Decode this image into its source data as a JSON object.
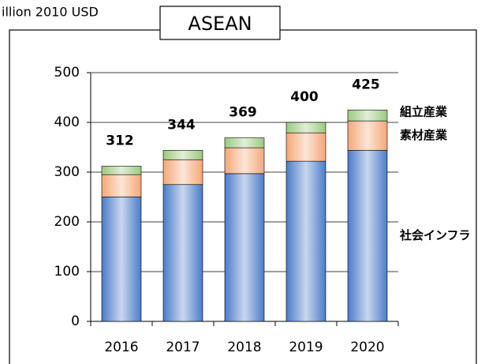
{
  "chart_data": {
    "type": "stacked_bar",
    "title": "ASEAN",
    "y_label": "illion 2010 USD",
    "categories": [
      "2016",
      "2017",
      "2018",
      "2019",
      "2020"
    ],
    "series": [
      {
        "name": "社会インフラ",
        "color": "#4a7bc8",
        "values": [
          250,
          275,
          297,
          322,
          344
        ]
      },
      {
        "name": "素材産業",
        "color": "#f4a878",
        "values": [
          45,
          50,
          52,
          57,
          59
        ]
      },
      {
        "name": "組立産業",
        "color": "#9bc97e",
        "values": [
          17,
          19,
          20,
          21,
          22
        ]
      }
    ],
    "total_labels": [
      312,
      344,
      369,
      400,
      425
    ],
    "ylim": [
      0,
      500
    ],
    "yticks": [
      0,
      100,
      200,
      300,
      400,
      500
    ],
    "grid": true
  }
}
